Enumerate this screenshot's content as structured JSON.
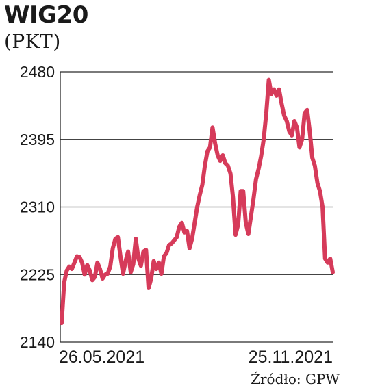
{
  "title": "WIG20",
  "unit": "(PKT)",
  "source": "Źródło: GPW",
  "chart_data": {
    "type": "line",
    "title": "WIG20",
    "ylabel": "(PKT)",
    "xlabel": "",
    "ylim": [
      2140,
      2480
    ],
    "yticks": [
      2480,
      2395,
      2310,
      2225,
      2140
    ],
    "xticks": [
      {
        "label": "26.05.2021",
        "index": 0
      },
      {
        "label": "25.11.2021",
        "index": 128
      }
    ],
    "grid": true,
    "line_color": "#d63b5a",
    "series": [
      {
        "values": [
          2164,
          2215,
          2230,
          2235,
          2232,
          2240,
          2248,
          2247,
          2240,
          2225,
          2237,
          2230,
          2218,
          2222,
          2240,
          2232,
          2220,
          2225,
          2226,
          2235,
          2258,
          2270,
          2272,
          2248,
          2226,
          2242,
          2254,
          2228,
          2238,
          2270,
          2245,
          2236,
          2254,
          2256,
          2208,
          2220,
          2242,
          2232,
          2240,
          2226,
          2248,
          2252,
          2262,
          2264,
          2268,
          2272,
          2285,
          2290,
          2278,
          2280,
          2258,
          2270,
          2290,
          2310,
          2325,
          2338,
          2362,
          2380,
          2385,
          2410,
          2390,
          2375,
          2368,
          2375,
          2365,
          2362,
          2352,
          2322,
          2275,
          2288,
          2330,
          2330,
          2290,
          2276,
          2298,
          2320,
          2345,
          2358,
          2374,
          2395,
          2428,
          2470,
          2452,
          2458,
          2450,
          2458,
          2440,
          2425,
          2418,
          2405,
          2400,
          2418,
          2410,
          2385,
          2395,
          2428,
          2432,
          2405,
          2372,
          2362,
          2340,
          2330,
          2310,
          2245,
          2240,
          2245,
          2228
        ]
      }
    ]
  }
}
